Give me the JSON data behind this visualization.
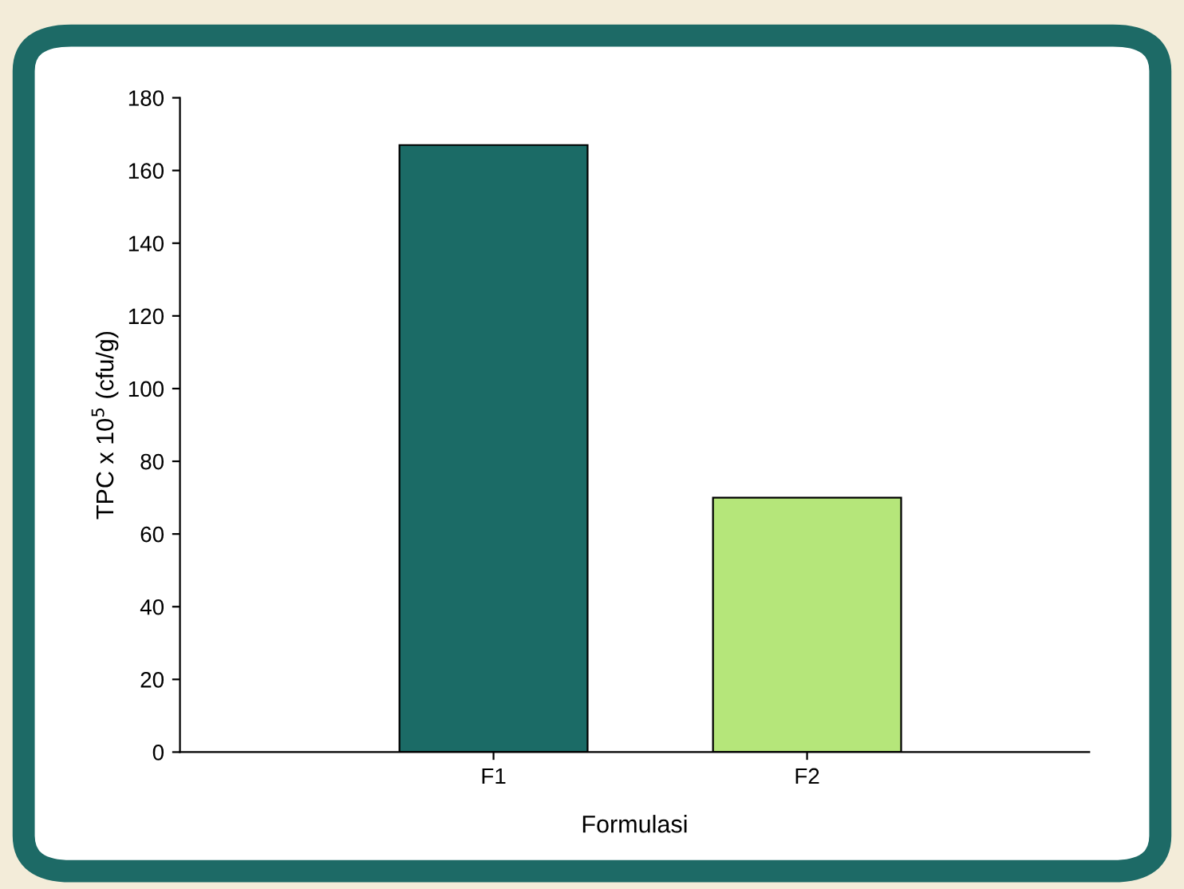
{
  "chart_data": {
    "type": "bar",
    "xlabel": "Formulasi",
    "ylabel": "TPC x 10$^{5}$ (cfu/g)",
    "categories": [
      "F1",
      "F2"
    ],
    "values": [
      167,
      70
    ],
    "colors": [
      "#1b6b66",
      "#b5e67a"
    ],
    "ylim": [
      0,
      180
    ],
    "yticks": [
      0,
      20,
      40,
      60,
      80,
      100,
      120,
      140,
      160,
      180
    ],
    "grid": false,
    "legend": false
  }
}
